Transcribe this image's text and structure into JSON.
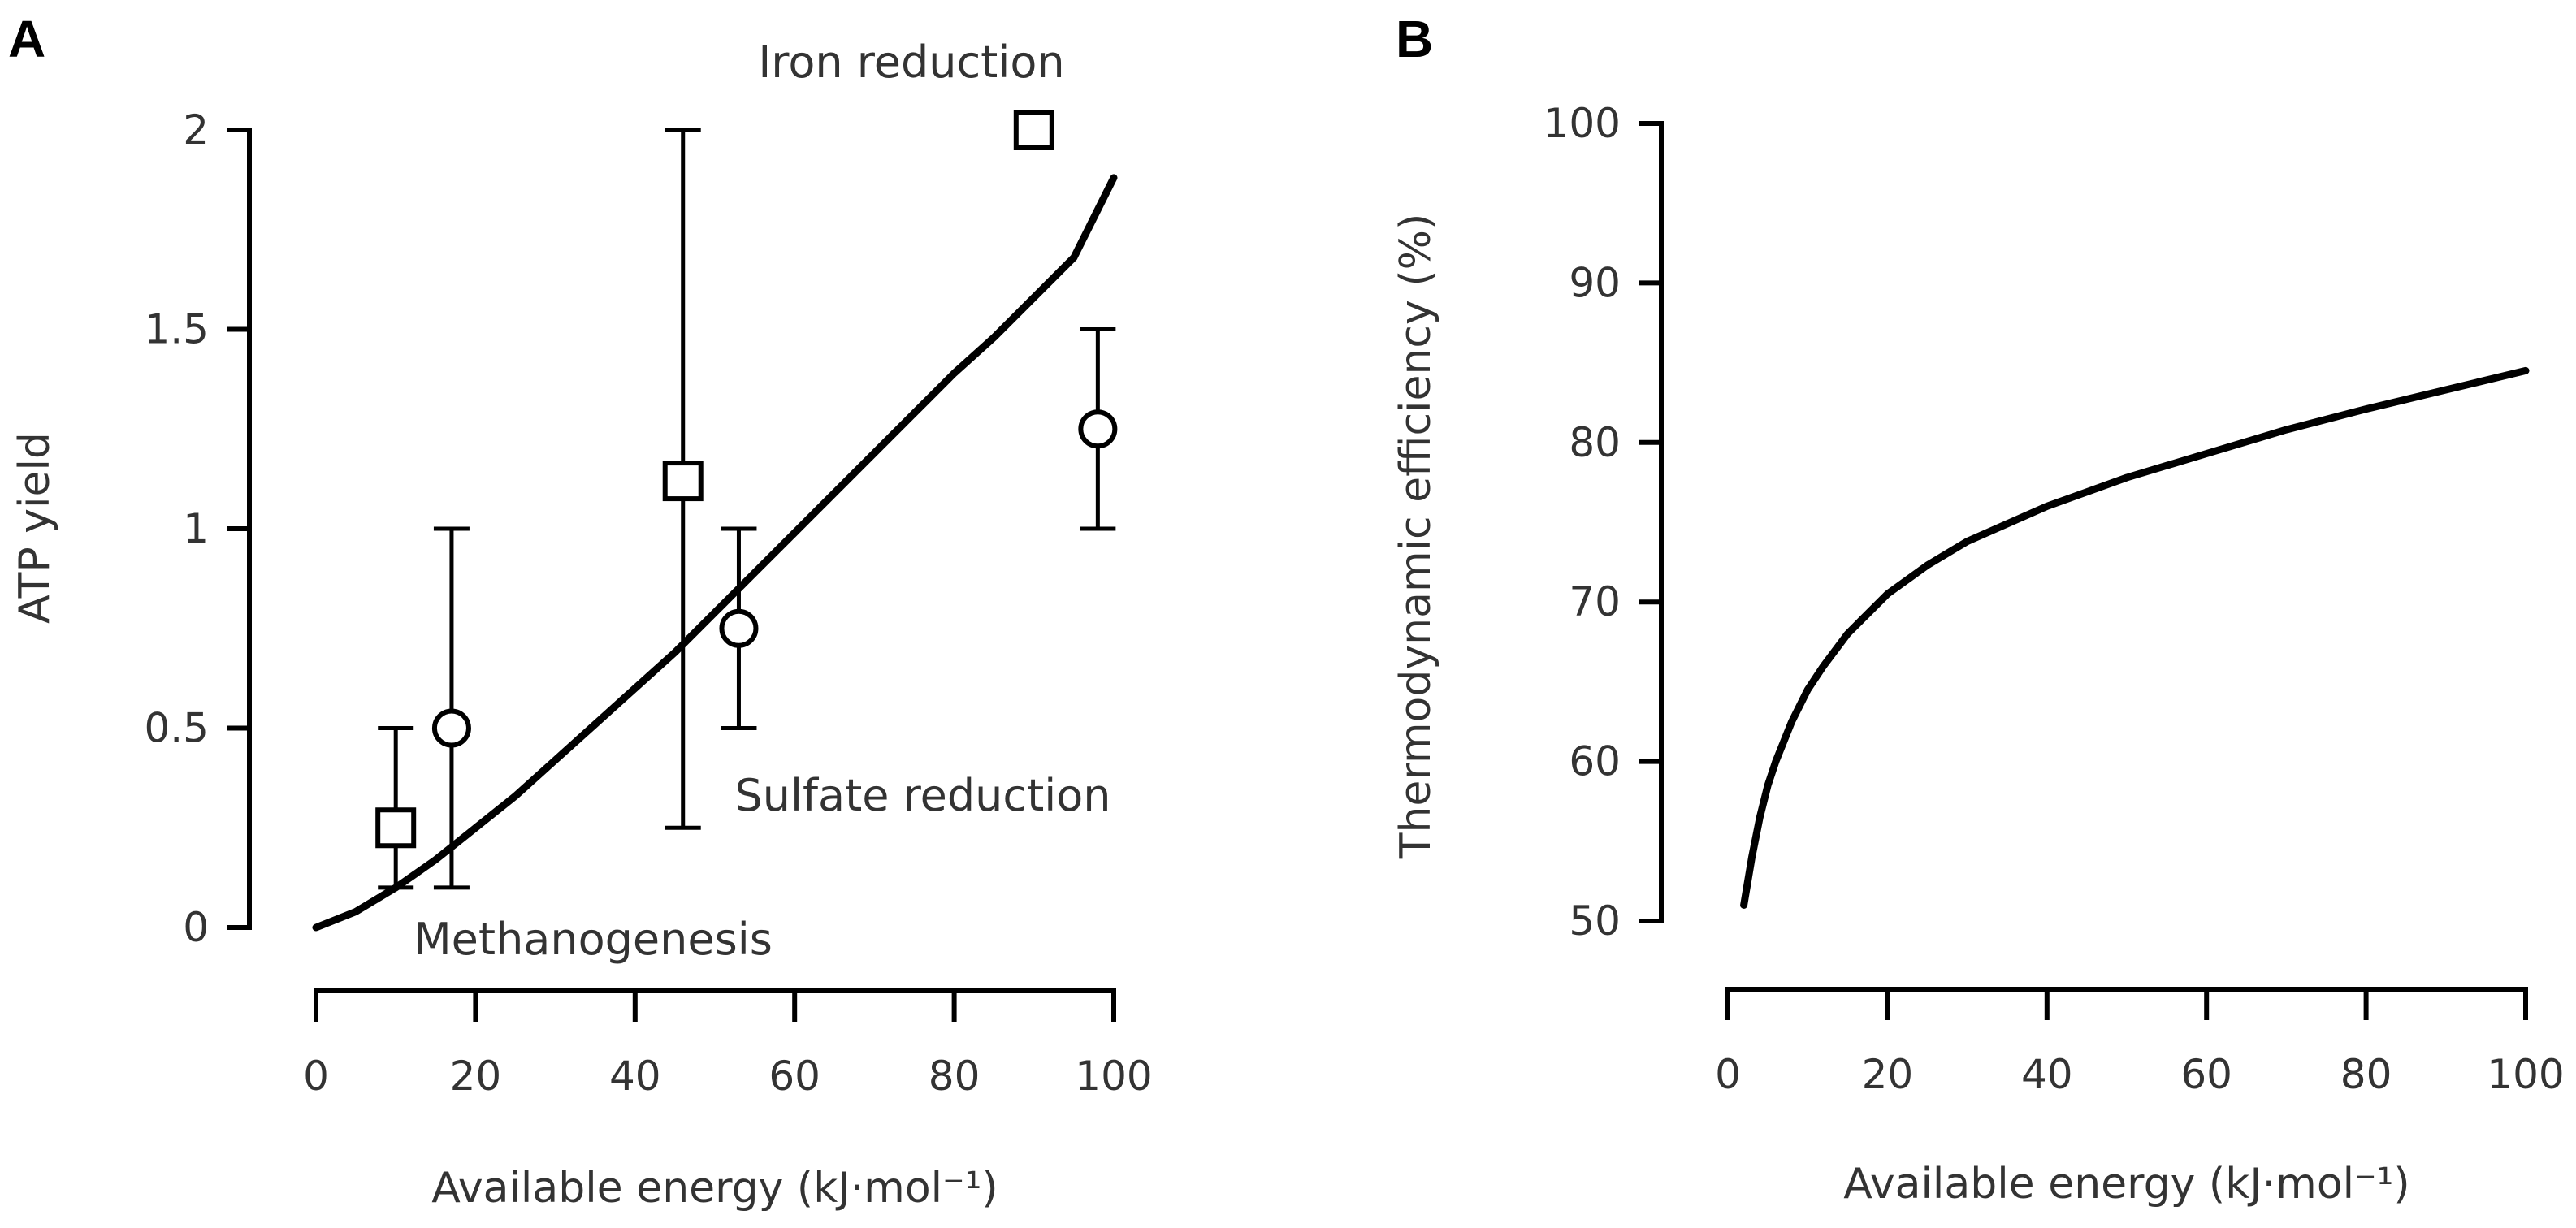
{
  "chart_data": [
    {
      "panel": "A",
      "type": "scatter",
      "xlabel": "Available energy (kJ·mol⁻¹)",
      "ylabel": "ATP yield",
      "xlim": [
        0,
        100
      ],
      "ylim": [
        0,
        2
      ],
      "xticks": [
        "0",
        "20",
        "40",
        "60",
        "80",
        "100"
      ],
      "yticks": [
        "0",
        "0.5",
        "1",
        "1.5",
        "2"
      ],
      "series": [
        {
          "name": "squares",
          "marker": "square",
          "points": [
            {
              "x": 10,
              "y": 0.25,
              "ylow": 0.1,
              "yhigh": 0.5
            },
            {
              "x": 46,
              "y": 1.12,
              "ylow": 0.25,
              "yhigh": 2.0
            },
            {
              "x": 90,
              "y": 2.0
            }
          ]
        },
        {
          "name": "circles",
          "marker": "circle",
          "points": [
            {
              "x": 17,
              "y": 0.5,
              "ylow": 0.1,
              "yhigh": 1.0
            },
            {
              "x": 53,
              "y": 0.75,
              "ylow": 0.5,
              "yhigh": 1.0
            },
            {
              "x": 98,
              "y": 1.25,
              "ylow": 1.0,
              "yhigh": 1.5
            }
          ]
        },
        {
          "name": "fit",
          "type": "line",
          "x": [
            0,
            5,
            10,
            15,
            20,
            25,
            30,
            35,
            40,
            45,
            50,
            55,
            60,
            65,
            70,
            75,
            80,
            85,
            90,
            95,
            100
          ],
          "y": [
            0,
            0.04,
            0.1,
            0.17,
            0.25,
            0.33,
            0.42,
            0.51,
            0.6,
            0.69,
            0.79,
            0.89,
            0.99,
            1.09,
            1.19,
            1.29,
            1.39,
            1.48,
            1.58,
            1.68,
            1.88
          ]
        }
      ],
      "annotations": [
        "Iron reduction",
        "Sulfate reduction",
        "Methanogenesis"
      ]
    },
    {
      "panel": "B",
      "type": "line",
      "xlabel": "Available energy (kJ·mol⁻¹)",
      "ylabel": "Thermodynamic efficiency (%)",
      "xlim": [
        0,
        100
      ],
      "ylim": [
        50,
        100
      ],
      "xticks": [
        "0",
        "20",
        "40",
        "60",
        "80",
        "100"
      ],
      "yticks": [
        "50",
        "60",
        "70",
        "80",
        "90",
        "100"
      ],
      "series": [
        {
          "name": "efficiency",
          "x": [
            2,
            3,
            4,
            5,
            6,
            8,
            10,
            12,
            15,
            20,
            25,
            30,
            40,
            50,
            60,
            70,
            80,
            90,
            100
          ],
          "y": [
            51,
            54,
            56.5,
            58.5,
            60,
            62.5,
            64.5,
            66,
            68,
            70.5,
            72.3,
            73.8,
            76,
            77.8,
            79.3,
            80.8,
            82.1,
            83.3,
            84.5
          ]
        }
      ]
    }
  ],
  "panels": {
    "a": {
      "letter": "A",
      "ylabel": "ATP yield",
      "xlabel": "Available energy (kJ·mol⁻¹)",
      "yticks": [
        "0",
        "0.5",
        "1",
        "1.5",
        "2"
      ],
      "xticks": [
        "0",
        "20",
        "40",
        "60",
        "80",
        "100"
      ],
      "annotations": {
        "iron": "Iron reduction",
        "sulfate": "Sulfate reduction",
        "methano": "Methanogenesis"
      }
    },
    "b": {
      "letter": "B",
      "ylabel": "Thermodynamic efficiency (%)",
      "xlabel": "Available energy (kJ·mol⁻¹)",
      "yticks": [
        "50",
        "60",
        "70",
        "80",
        "90",
        "100"
      ],
      "xticks": [
        "0",
        "20",
        "40",
        "60",
        "80",
        "100"
      ]
    }
  }
}
